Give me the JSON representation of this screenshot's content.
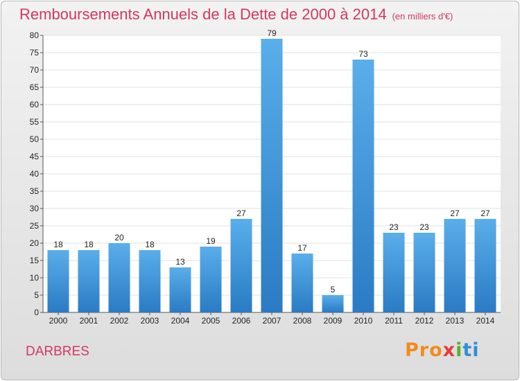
{
  "header": {
    "title": "Remboursements Annuels de la Dette de 2000 à 2014",
    "unit": "(en milliers d'€)"
  },
  "footer": {
    "commune": "DARBRES",
    "logo": [
      "Pro",
      "x",
      "i",
      "ti"
    ]
  },
  "colors": {
    "bar": "#3b8fd8",
    "title": "#d2385f"
  },
  "chart_data": {
    "type": "bar",
    "title": "Remboursements Annuels de la Dette de 2000 à 2014",
    "subtitle": "(en milliers d'€)",
    "categories": [
      "2000",
      "2001",
      "2002",
      "2003",
      "2004",
      "2005",
      "2006",
      "2007",
      "2008",
      "2009",
      "2010",
      "2011",
      "2012",
      "2013",
      "2014"
    ],
    "values": [
      18,
      18,
      20,
      18,
      13,
      19,
      27,
      79,
      17,
      5,
      73,
      23,
      23,
      27,
      27
    ],
    "ylim": [
      0,
      80
    ],
    "yticks": [
      0,
      5,
      10,
      15,
      20,
      25,
      30,
      35,
      40,
      45,
      50,
      55,
      60,
      65,
      70,
      75,
      80
    ],
    "grid": true,
    "xlabel": "",
    "ylabel": ""
  }
}
